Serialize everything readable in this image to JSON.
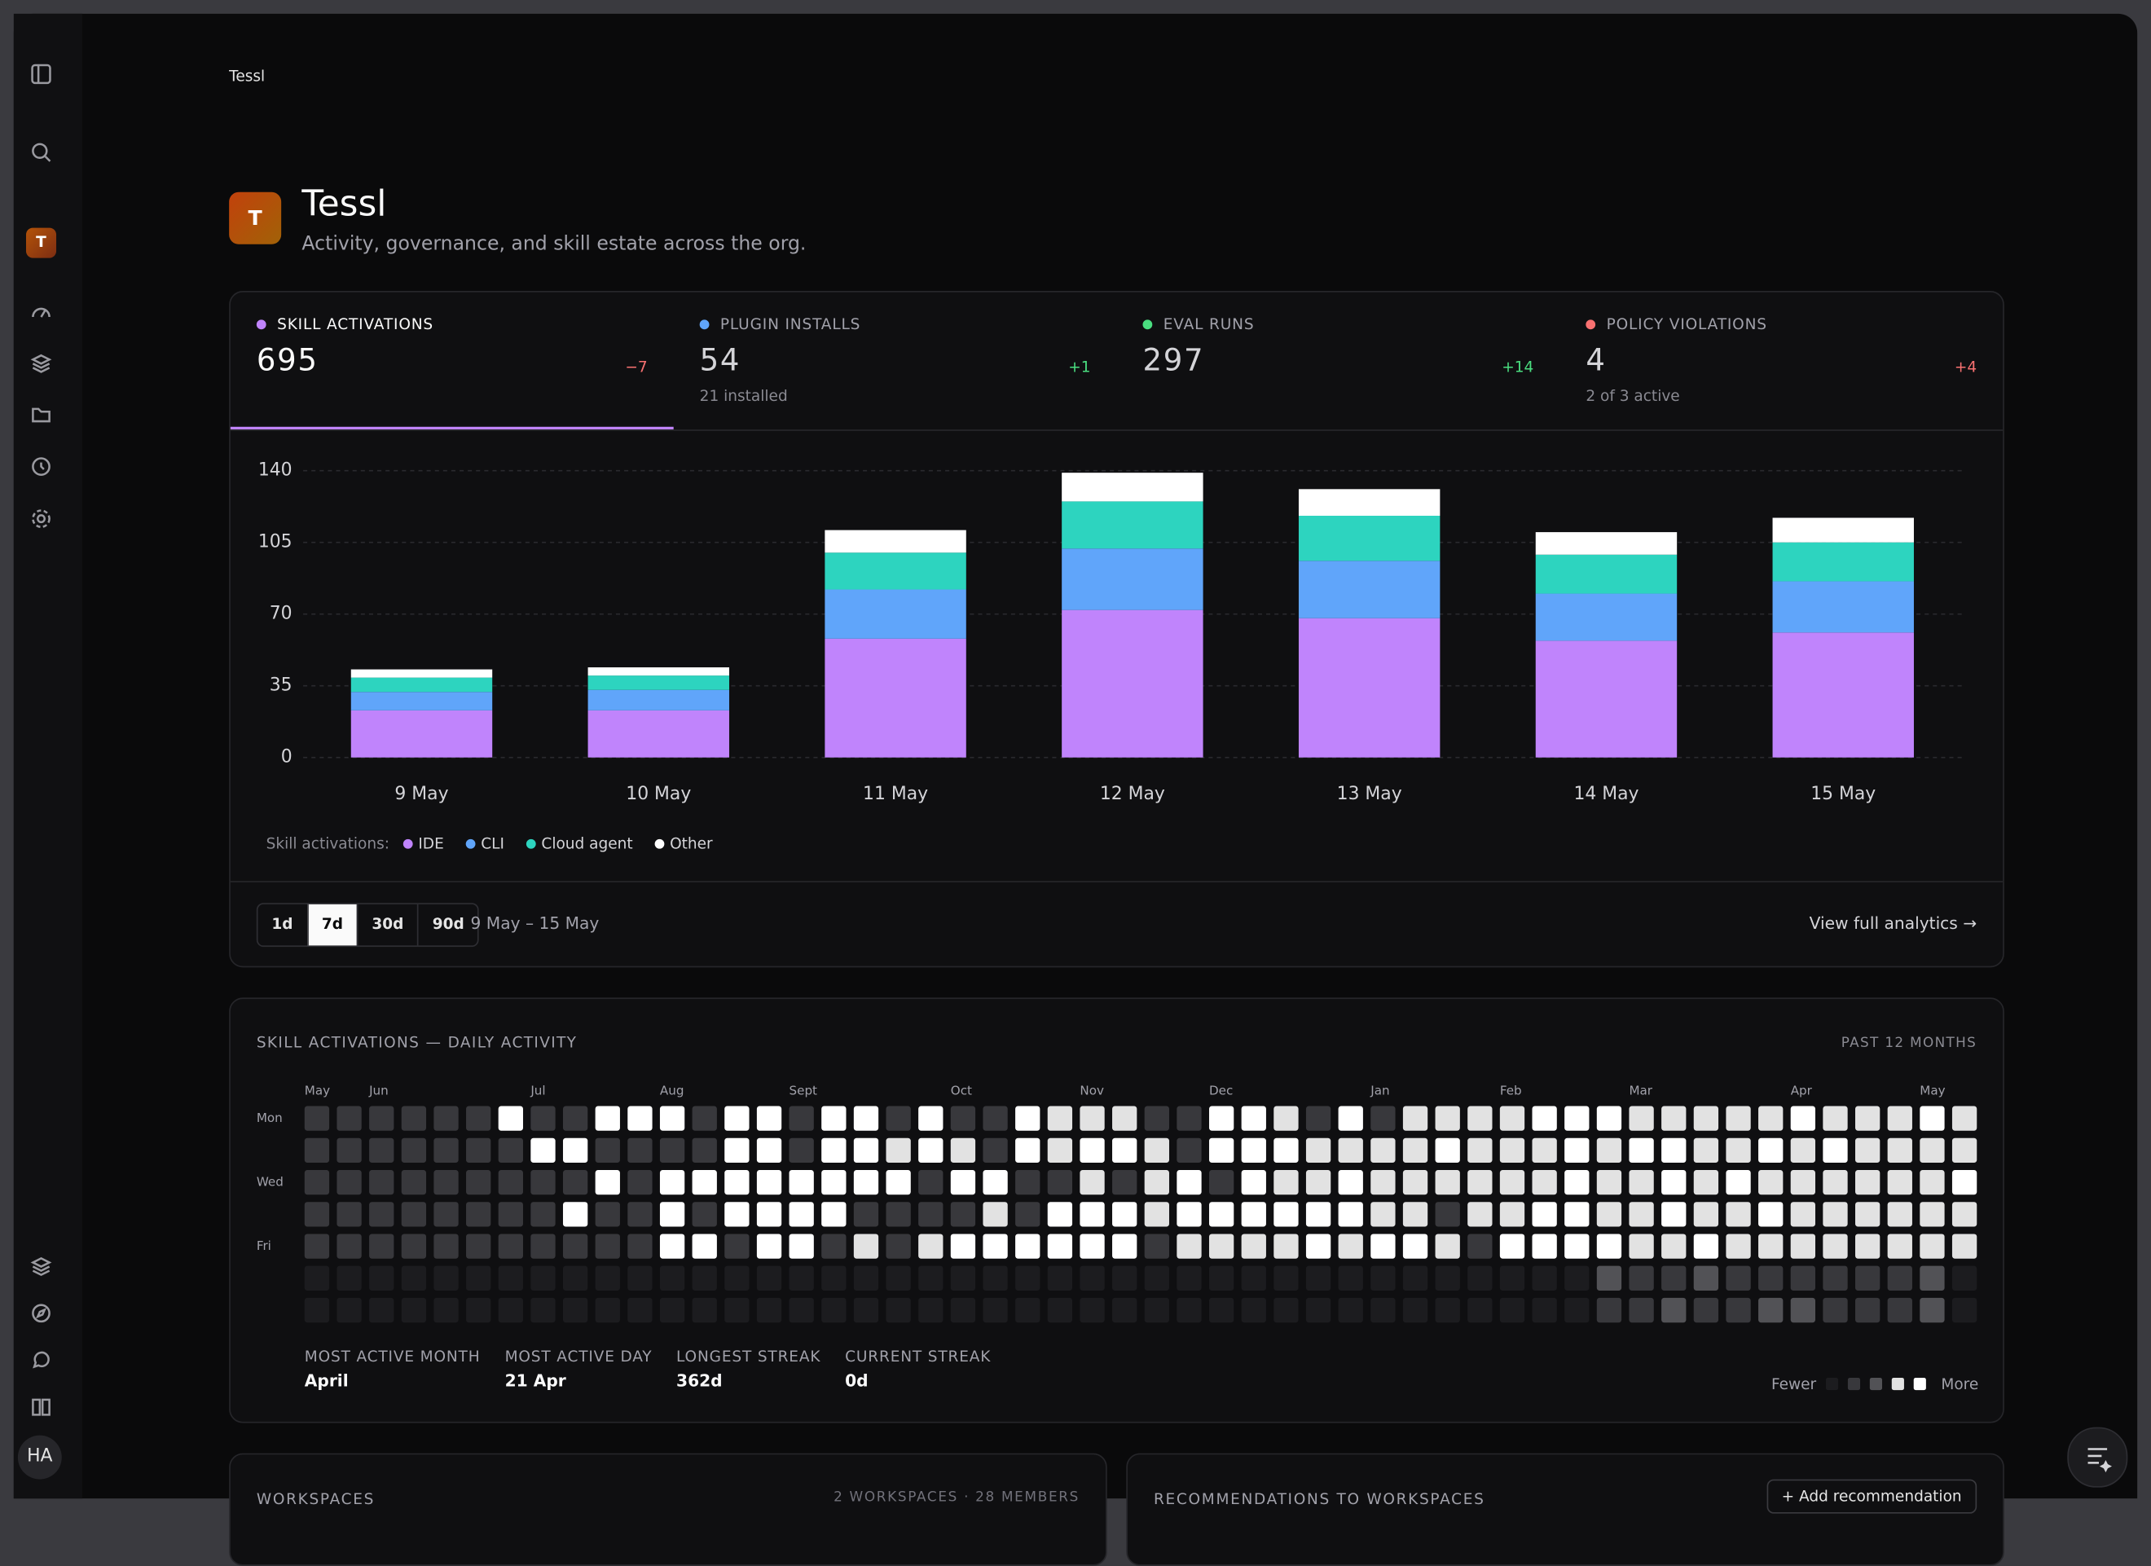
{
  "breadcrumb": "Tessl",
  "header": {
    "avatar": "T",
    "title": "Tessl",
    "subtitle": "Activity, governance, and skill estate across the org."
  },
  "kpis": [
    {
      "label": "SKILL ACTIVATIONS",
      "value": 695,
      "delta": "−7",
      "color": "#c084fc",
      "delta_color": "#f87171"
    },
    {
      "label": "PLUGIN INSTALLS",
      "value": 54,
      "delta": "+1",
      "note": "21 installed",
      "color": "#60a5fa",
      "delta_color": "#4ade80"
    },
    {
      "label": "EVAL RUNS",
      "value": 297,
      "delta": "+14",
      "color": "#4ade80",
      "delta_color": "#4ade80"
    },
    {
      "label": "POLICY VIOLATIONS",
      "value": 4,
      "delta": "+4",
      "note": "2 of 3 active",
      "color": "#f87171",
      "delta_color": "#f87171"
    }
  ],
  "active_kpi": 0,
  "chart_data": {
    "type": "bar",
    "stacked": true,
    "categories": [
      "9 May",
      "10 May",
      "11 May",
      "12 May",
      "13 May",
      "14 May",
      "15 May"
    ],
    "legend_title": "Skill activations:",
    "series": [
      {
        "name": "IDE",
        "color": "#c084fc",
        "values": [
          23,
          23,
          58,
          72,
          68,
          57,
          61
        ]
      },
      {
        "name": "CLI",
        "color": "#60a5fa",
        "values": [
          9,
          10,
          24,
          30,
          28,
          23,
          25
        ]
      },
      {
        "name": "Cloud agent",
        "color": "#2dd4bf",
        "values": [
          7,
          7,
          18,
          23,
          22,
          19,
          19
        ]
      },
      {
        "name": "Other",
        "color": "#ffffff",
        "values": [
          4,
          4,
          11,
          14,
          13,
          11,
          12
        ]
      }
    ],
    "ylim": [
      0,
      140
    ],
    "yticks": [
      0,
      35,
      70,
      105,
      140
    ],
    "grid": true
  },
  "ranges": [
    "1d",
    "7d",
    "30d",
    "90d"
  ],
  "active_range": 1,
  "date_range": "9 May – 15 May",
  "analytics_link": "View full analytics →",
  "heatmap": {
    "title": "SKILL ACTIVATIONS — DAILY ACTIVITY",
    "period": "PAST 12 MONTHS",
    "weeks": [
      "May",
      null,
      "Jun",
      null,
      null,
      null,
      null,
      "Jul",
      null,
      null,
      null,
      "Aug",
      null,
      null,
      null,
      "Sept",
      null,
      null,
      null,
      null,
      "Oct",
      null,
      null,
      null,
      "Nov",
      null,
      null,
      null,
      "Dec",
      null,
      null,
      null,
      null,
      "Jan",
      null,
      null,
      null,
      "Feb",
      null,
      null,
      null,
      "Mar",
      null,
      null,
      null,
      null,
      "Apr",
      null,
      null,
      null,
      "May",
      null
    ],
    "days": [
      "Mon",
      null,
      "Wed",
      null,
      "Fri",
      null,
      null
    ],
    "level_colors": [
      "#1c1c1f",
      "#38383c",
      "#525256",
      "#e2e2e2",
      "#ffffff"
    ],
    "levels": [
      [
        1,
        1,
        1,
        1,
        1,
        1,
        4,
        1,
        1,
        4,
        4,
        4,
        1,
        4,
        4,
        1,
        4,
        4,
        1,
        4,
        1,
        1,
        4,
        3,
        3,
        3,
        1,
        1,
        4,
        4,
        3,
        1,
        4,
        1,
        3,
        3,
        3,
        3,
        4,
        4,
        4,
        3,
        3,
        3,
        3,
        3,
        4,
        3,
        3,
        3,
        4,
        3
      ],
      [
        1,
        1,
        1,
        1,
        1,
        1,
        1,
        4,
        4,
        1,
        1,
        1,
        1,
        4,
        4,
        1,
        4,
        4,
        3,
        4,
        3,
        1,
        4,
        3,
        4,
        4,
        3,
        1,
        4,
        4,
        4,
        3,
        3,
        3,
        3,
        4,
        3,
        3,
        3,
        4,
        3,
        4,
        4,
        3,
        3,
        4,
        3,
        4,
        3,
        3,
        3,
        3
      ],
      [
        1,
        1,
        1,
        1,
        1,
        1,
        1,
        1,
        1,
        4,
        1,
        4,
        4,
        4,
        4,
        4,
        4,
        4,
        4,
        1,
        4,
        4,
        1,
        1,
        3,
        1,
        3,
        4,
        1,
        4,
        3,
        3,
        4,
        3,
        3,
        3,
        3,
        3,
        3,
        4,
        3,
        3,
        4,
        3,
        4,
        3,
        3,
        3,
        3,
        3,
        3,
        4
      ],
      [
        1,
        1,
        1,
        1,
        1,
        1,
        1,
        1,
        4,
        1,
        1,
        4,
        1,
        4,
        4,
        4,
        4,
        1,
        1,
        1,
        1,
        3,
        1,
        4,
        4,
        4,
        3,
        4,
        4,
        4,
        4,
        4,
        4,
        3,
        3,
        1,
        3,
        3,
        4,
        4,
        3,
        3,
        4,
        3,
        3,
        4,
        3,
        3,
        3,
        3,
        3,
        3
      ],
      [
        1,
        1,
        1,
        1,
        1,
        1,
        1,
        1,
        1,
        1,
        1,
        4,
        4,
        1,
        4,
        4,
        1,
        3,
        1,
        3,
        4,
        4,
        4,
        4,
        4,
        4,
        1,
        3,
        3,
        3,
        3,
        4,
        3,
        4,
        4,
        3,
        1,
        4,
        4,
        4,
        4,
        3,
        3,
        4,
        3,
        3,
        3,
        3,
        3,
        3,
        3,
        3
      ],
      [
        0,
        0,
        0,
        0,
        0,
        0,
        0,
        0,
        0,
        0,
        0,
        0,
        0,
        0,
        0,
        0,
        0,
        0,
        0,
        0,
        0,
        0,
        0,
        0,
        0,
        0,
        0,
        0,
        0,
        0,
        0,
        0,
        0,
        0,
        0,
        0,
        0,
        0,
        0,
        0,
        2,
        1,
        1,
        2,
        1,
        1,
        1,
        1,
        1,
        1,
        2,
        0
      ],
      [
        0,
        0,
        0,
        0,
        0,
        0,
        0,
        0,
        0,
        0,
        0,
        0,
        0,
        0,
        0,
        0,
        0,
        0,
        0,
        0,
        0,
        0,
        0,
        0,
        0,
        0,
        0,
        0,
        0,
        0,
        0,
        0,
        0,
        0,
        0,
        0,
        0,
        0,
        0,
        0,
        1,
        1,
        2,
        1,
        1,
        2,
        2,
        1,
        1,
        1,
        2,
        0
      ]
    ],
    "stats": [
      {
        "label": "MOST ACTIVE MONTH",
        "value": "April"
      },
      {
        "label": "MOST ACTIVE DAY",
        "value": "21 Apr"
      },
      {
        "label": "LONGEST STREAK",
        "value": "362d"
      },
      {
        "label": "CURRENT STREAK",
        "value": "0d"
      }
    ],
    "legend_low": "Fewer",
    "legend_high": "More"
  },
  "sections": [
    {
      "title": "WORKSPACES",
      "meta": "2 WORKSPACES · 28 MEMBERS"
    },
    {
      "title": "RECOMMENDATIONS TO WORKSPACES",
      "action": "+ Add recommendation"
    }
  ],
  "user": "HA"
}
